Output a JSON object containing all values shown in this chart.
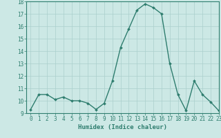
{
  "x": [
    0,
    1,
    2,
    3,
    4,
    5,
    6,
    7,
    8,
    9,
    10,
    11,
    12,
    13,
    14,
    15,
    16,
    17,
    18,
    19,
    20,
    21,
    22,
    23
  ],
  "y": [
    9.3,
    10.5,
    10.5,
    10.1,
    10.3,
    10.0,
    10.0,
    9.8,
    9.3,
    9.8,
    11.6,
    14.3,
    15.8,
    17.3,
    17.8,
    17.5,
    17.0,
    13.0,
    10.5,
    9.2,
    11.6,
    10.5,
    9.9,
    9.2
  ],
  "xlabel": "Humidex (Indice chaleur)",
  "ylim": [
    9,
    18
  ],
  "xlim": [
    -0.5,
    23
  ],
  "yticks": [
    9,
    10,
    11,
    12,
    13,
    14,
    15,
    16,
    17,
    18
  ],
  "xticks": [
    0,
    1,
    2,
    3,
    4,
    5,
    6,
    7,
    8,
    9,
    10,
    11,
    12,
    13,
    14,
    15,
    16,
    17,
    18,
    19,
    20,
    21,
    22,
    23
  ],
  "line_color": "#2e7d6e",
  "marker_color": "#2e7d6e",
  "bg_color": "#cce8e5",
  "grid_color": "#aacfcc",
  "tick_label_color": "#2e7d6e",
  "axis_color": "#2e7d6e",
  "xlabel_color": "#2e7d6e",
  "xlabel_fontsize": 6.5,
  "tick_fontsize": 5.5,
  "linewidth": 1.0,
  "markersize": 2.0
}
